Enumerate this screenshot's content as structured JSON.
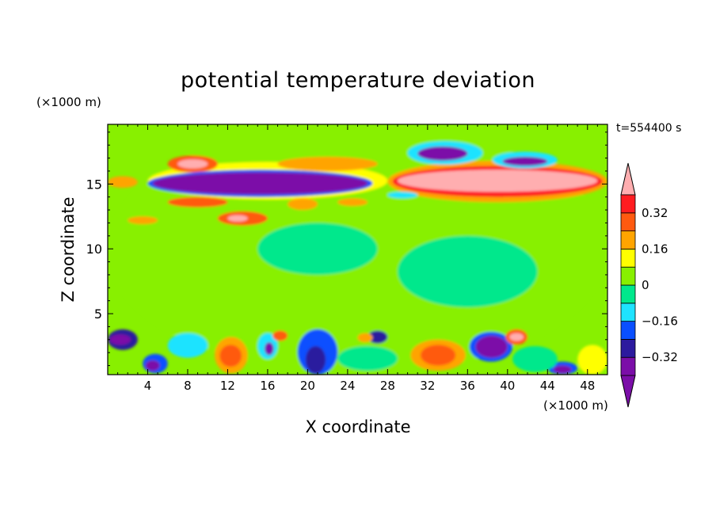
{
  "title": "potential temperature deviation",
  "time_label": "t=554400 s",
  "chart_data": {
    "type": "heatmap",
    "title": "potential temperature deviation",
    "xlabel": "X coordinate",
    "ylabel": "Z coordinate",
    "x_unit": "(×1000 m)",
    "y_unit": "(×1000 m)",
    "xlim": [
      0,
      50
    ],
    "ylim": [
      0.3,
      19.6
    ],
    "x_ticks": [
      4,
      8,
      12,
      16,
      20,
      24,
      28,
      32,
      36,
      40,
      44,
      48
    ],
    "y_ticks": [
      5,
      10,
      15
    ],
    "background_value": 0.0,
    "colorbar": {
      "levels": [
        -0.4,
        -0.32,
        -0.24,
        -0.16,
        -0.08,
        0,
        0.08,
        0.16,
        0.24,
        0.32,
        0.4
      ],
      "tick_labels": [
        "0.32",
        "0.16",
        "0",
        "−0.16",
        "−0.32"
      ],
      "tick_values": [
        0.32,
        0.16,
        0,
        -0.16,
        -0.32
      ],
      "colors": [
        "#7b0ea8",
        "#2c1a9e",
        "#0a4fff",
        "#1ee3ff",
        "#00e88c",
        "#88f000",
        "#ffff00",
        "#ffa400",
        "#ff5a10",
        "#ff1c20",
        "#ffaeb0"
      ],
      "extend": "both"
    },
    "features": [
      {
        "x0": 0,
        "x1": 50,
        "z0": 0.3,
        "z1": 19.6,
        "value": 0.04
      },
      {
        "x0": 0,
        "x1": 8,
        "z0": 7,
        "z1": 12,
        "value": 0.02
      },
      {
        "x0": 15,
        "x1": 27,
        "z0": 8,
        "z1": 12,
        "value": -0.04
      },
      {
        "x0": 29,
        "x1": 43,
        "z0": 5.5,
        "z1": 11,
        "value": -0.03
      },
      {
        "x0": 7,
        "x1": 18,
        "z0": 16.8,
        "z1": 19.5,
        "value": 0.04
      },
      {
        "x0": 4,
        "x1": 28,
        "z0": 13.8,
        "z1": 16.7,
        "value": 0.1
      },
      {
        "x0": 6,
        "x1": 11,
        "z0": 15.9,
        "z1": 17.2,
        "value": 0.26
      },
      {
        "x0": 7,
        "x1": 10,
        "z0": 16.2,
        "z1": 16.9,
        "value": 0.45
      },
      {
        "x0": 17,
        "x1": 27,
        "z0": 16,
        "z1": 17.1,
        "value": 0.22
      },
      {
        "x0": 4,
        "x1": 26.5,
        "z0": 14,
        "z1": 16.1,
        "value": -0.24
      },
      {
        "x0": 4.5,
        "x1": 26,
        "z0": 14.2,
        "z1": 15.9,
        "value": -0.44
      },
      {
        "x0": 0,
        "x1": 3,
        "z0": 14.7,
        "z1": 15.6,
        "value": 0.2
      },
      {
        "x0": 6,
        "x1": 12,
        "z0": 13.2,
        "z1": 14,
        "value": 0.26
      },
      {
        "x0": 11,
        "x1": 16,
        "z0": 11.8,
        "z1": 12.9,
        "value": 0.28
      },
      {
        "x0": 12,
        "x1": 14,
        "z0": 12.1,
        "z1": 12.6,
        "value": 0.45
      },
      {
        "x0": 2,
        "x1": 5,
        "z0": 11.9,
        "z1": 12.5,
        "value": 0.2
      },
      {
        "x0": 18,
        "x1": 21,
        "z0": 13,
        "z1": 13.9,
        "value": 0.2
      },
      {
        "x0": 23,
        "x1": 26,
        "z0": 13.3,
        "z1": 13.9,
        "value": 0.2
      },
      {
        "x0": 28,
        "x1": 50,
        "z0": 13.6,
        "z1": 16.8,
        "value": 0.2
      },
      {
        "x0": 28.5,
        "x1": 49.5,
        "z0": 14,
        "z1": 16.4,
        "value": 0.34
      },
      {
        "x0": 29,
        "x1": 49,
        "z0": 14.4,
        "z1": 16.1,
        "value": 0.45
      },
      {
        "x0": 30,
        "x1": 37.5,
        "z0": 16.5,
        "z1": 18.3,
        "value": -0.14
      },
      {
        "x0": 31,
        "x1": 36,
        "z0": 16.8,
        "z1": 17.9,
        "value": -0.34
      },
      {
        "x0": 38.5,
        "x1": 45,
        "z0": 16.2,
        "z1": 17.5,
        "value": -0.14
      },
      {
        "x0": 39.5,
        "x1": 44,
        "z0": 16.4,
        "z1": 17.1,
        "value": -0.34
      },
      {
        "x0": 28,
        "x1": 31,
        "z0": 13.9,
        "z1": 14.4,
        "value": -0.12
      },
      {
        "x0": 0,
        "x1": 3,
        "z0": 2.2,
        "z1": 3.8,
        "value": -0.3
      },
      {
        "x0": 0.2,
        "x1": 2.3,
        "z0": 2.6,
        "z1": 3.4,
        "value": -0.45
      },
      {
        "x0": 3.5,
        "x1": 6,
        "z0": 0.4,
        "z1": 1.9,
        "value": -0.24
      },
      {
        "x0": 3.8,
        "x1": 5.2,
        "z0": 0.6,
        "z1": 1.4,
        "value": -0.35
      },
      {
        "x0": 10.7,
        "x1": 14,
        "z0": 0.4,
        "z1": 3.2,
        "value": 0.2
      },
      {
        "x0": 11.2,
        "x1": 13.4,
        "z0": 0.9,
        "z1": 2.6,
        "value": 0.29
      },
      {
        "x0": 15,
        "x1": 17,
        "z0": 1.5,
        "z1": 3.5,
        "value": -0.16
      },
      {
        "x0": 15.7,
        "x1": 16.6,
        "z0": 1.8,
        "z1": 2.8,
        "value": -0.33
      },
      {
        "x0": 16.5,
        "x1": 18,
        "z0": 2.9,
        "z1": 3.7,
        "value": 0.24
      },
      {
        "x0": 19,
        "x1": 23,
        "z0": 0.3,
        "z1": 3.8,
        "value": -0.2
      },
      {
        "x0": 19.8,
        "x1": 21.8,
        "z0": 0.4,
        "z1": 2.5,
        "value": -0.32
      },
      {
        "x0": 26,
        "x1": 28,
        "z0": 2.7,
        "z1": 3.7,
        "value": -0.3
      },
      {
        "x0": 25,
        "x1": 26.5,
        "z0": 2.8,
        "z1": 3.5,
        "value": 0.2
      },
      {
        "x0": 30.3,
        "x1": 35.8,
        "z0": 0.6,
        "z1": 3,
        "value": 0.17
      },
      {
        "x0": 31.3,
        "x1": 34.8,
        "z0": 1,
        "z1": 2.6,
        "value": 0.29
      },
      {
        "x0": 36.2,
        "x1": 40.5,
        "z0": 1.3,
        "z1": 3.6,
        "value": -0.22
      },
      {
        "x0": 36.8,
        "x1": 40,
        "z0": 1.6,
        "z1": 3.3,
        "value": -0.36
      },
      {
        "x0": 39.8,
        "x1": 42,
        "z0": 2.6,
        "z1": 3.8,
        "value": 0.3
      },
      {
        "x0": 40.2,
        "x1": 41.6,
        "z0": 2.9,
        "z1": 3.5,
        "value": 0.45
      },
      {
        "x0": 44,
        "x1": 47,
        "z0": 0.3,
        "z1": 1.3,
        "value": -0.22
      },
      {
        "x0": 44.6,
        "x1": 46.4,
        "z0": 0.4,
        "z1": 1,
        "value": -0.35
      },
      {
        "x0": 47,
        "x1": 50,
        "z0": 0.3,
        "z1": 2.6,
        "value": 0.15
      },
      {
        "x0": 6,
        "x1": 10,
        "z0": 1.6,
        "z1": 3.5,
        "value": -0.1
      },
      {
        "x0": 23,
        "x1": 29,
        "z0": 0.6,
        "z1": 2.5,
        "value": -0.08
      },
      {
        "x0": 40.5,
        "x1": 45,
        "z0": 0.5,
        "z1": 2.5,
        "value": -0.07
      }
    ]
  }
}
